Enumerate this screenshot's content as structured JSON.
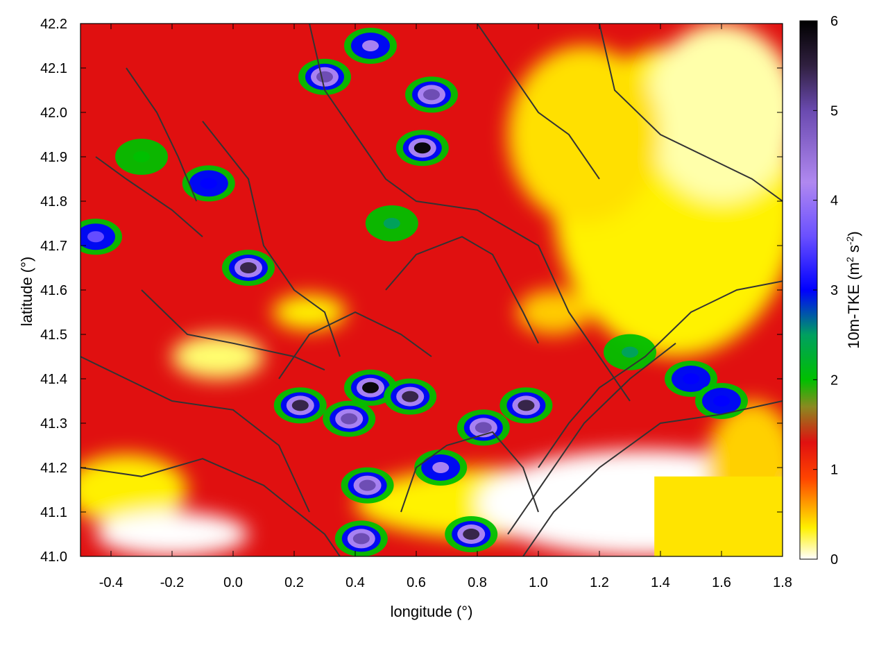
{
  "chart_data": {
    "type": "heatmap",
    "title": "",
    "xlabel": "longitude (°)",
    "ylabel": "latitude (°)",
    "colorbar_label_parts": [
      "10m-TKE (m",
      "2",
      " s",
      "-2",
      ")"
    ],
    "xlim": [
      -0.5,
      1.8
    ],
    "ylim": [
      41.0,
      42.2
    ],
    "x_ticks": [
      -0.4,
      -0.2,
      0.0,
      0.2,
      0.4,
      0.6,
      0.8,
      1.0,
      1.2,
      1.4,
      1.6,
      1.8
    ],
    "x_tick_labels": [
      "-0.4",
      "-0.2",
      "0.0",
      "0.2",
      "0.4",
      "0.6",
      "0.8",
      "1.0",
      "1.2",
      "1.4",
      "1.6",
      "1.8"
    ],
    "y_ticks": [
      41.0,
      41.1,
      41.2,
      41.3,
      41.4,
      41.5,
      41.6,
      41.7,
      41.8,
      41.9,
      42.0,
      42.1,
      42.2
    ],
    "y_tick_labels": [
      "41.0",
      "41.1",
      "41.2",
      "41.3",
      "41.4",
      "41.5",
      "41.6",
      "41.7",
      "41.8",
      "41.9",
      "42.0",
      "42.1",
      "42.2"
    ],
    "colorbar_range": [
      0,
      6
    ],
    "colorbar_ticks": [
      0,
      1,
      2,
      3,
      4,
      5,
      6
    ],
    "colorbar_tick_labels": [
      "0",
      "1",
      "2",
      "3",
      "4",
      "5",
      "6"
    ],
    "colormap": [
      {
        "value": 0.0,
        "color": "#ffffff"
      },
      {
        "value": 0.35,
        "color": "#fff000"
      },
      {
        "value": 0.9,
        "color": "#ff4400"
      },
      {
        "value": 1.3,
        "color": "#e01010"
      },
      {
        "value": 1.7,
        "color": "#8a8a20"
      },
      {
        "value": 2.0,
        "color": "#00c000"
      },
      {
        "value": 2.5,
        "color": "#00a060"
      },
      {
        "value": 3.0,
        "color": "#0000ff"
      },
      {
        "value": 3.6,
        "color": "#6a50ff"
      },
      {
        "value": 4.2,
        "color": "#b088f0"
      },
      {
        "value": 5.0,
        "color": "#6a4ab0"
      },
      {
        "value": 5.5,
        "color": "#302040"
      },
      {
        "value": 6.0,
        "color": "#000000"
      }
    ],
    "contour_color": "#333333",
    "grid": false,
    "tke_features": [
      {
        "lon": 0.45,
        "lat": 41.38,
        "tke": 6.0
      },
      {
        "lon": 0.58,
        "lat": 41.36,
        "tke": 5.5
      },
      {
        "lon": 0.22,
        "lat": 41.34,
        "tke": 5.5
      },
      {
        "lon": 0.38,
        "lat": 41.31,
        "tke": 5.0
      },
      {
        "lon": 0.96,
        "lat": 41.34,
        "tke": 5.5
      },
      {
        "lon": 0.82,
        "lat": 41.29,
        "tke": 5.0
      },
      {
        "lon": 0.44,
        "lat": 41.16,
        "tke": 4.5
      },
      {
        "lon": 0.68,
        "lat": 41.2,
        "tke": 4.0
      },
      {
        "lon": 0.78,
        "lat": 41.05,
        "tke": 5.5
      },
      {
        "lon": 0.42,
        "lat": 41.04,
        "tke": 5.0
      },
      {
        "lon": 0.65,
        "lat": 42.04,
        "tke": 5.0
      },
      {
        "lon": 0.62,
        "lat": 41.92,
        "tke": 6.0
      },
      {
        "lon": 0.3,
        "lat": 42.08,
        "tke": 4.5
      },
      {
        "lon": 0.45,
        "lat": 42.15,
        "tke": 4.0
      },
      {
        "lon": 0.05,
        "lat": 41.65,
        "tke": 5.5
      },
      {
        "lon": -0.08,
        "lat": 41.84,
        "tke": 3.0
      },
      {
        "lon": -0.3,
        "lat": 41.9,
        "tke": 2.0
      },
      {
        "lon": 0.52,
        "lat": 41.75,
        "tke": 2.5
      },
      {
        "lon": 1.5,
        "lat": 41.4,
        "tke": 3.0
      },
      {
        "lon": 1.6,
        "lat": 41.35,
        "tke": 3.0
      },
      {
        "lon": -0.45,
        "lat": 41.72,
        "tke": 3.5
      },
      {
        "lon": 1.3,
        "lat": 41.46,
        "tke": 2.5
      }
    ]
  }
}
